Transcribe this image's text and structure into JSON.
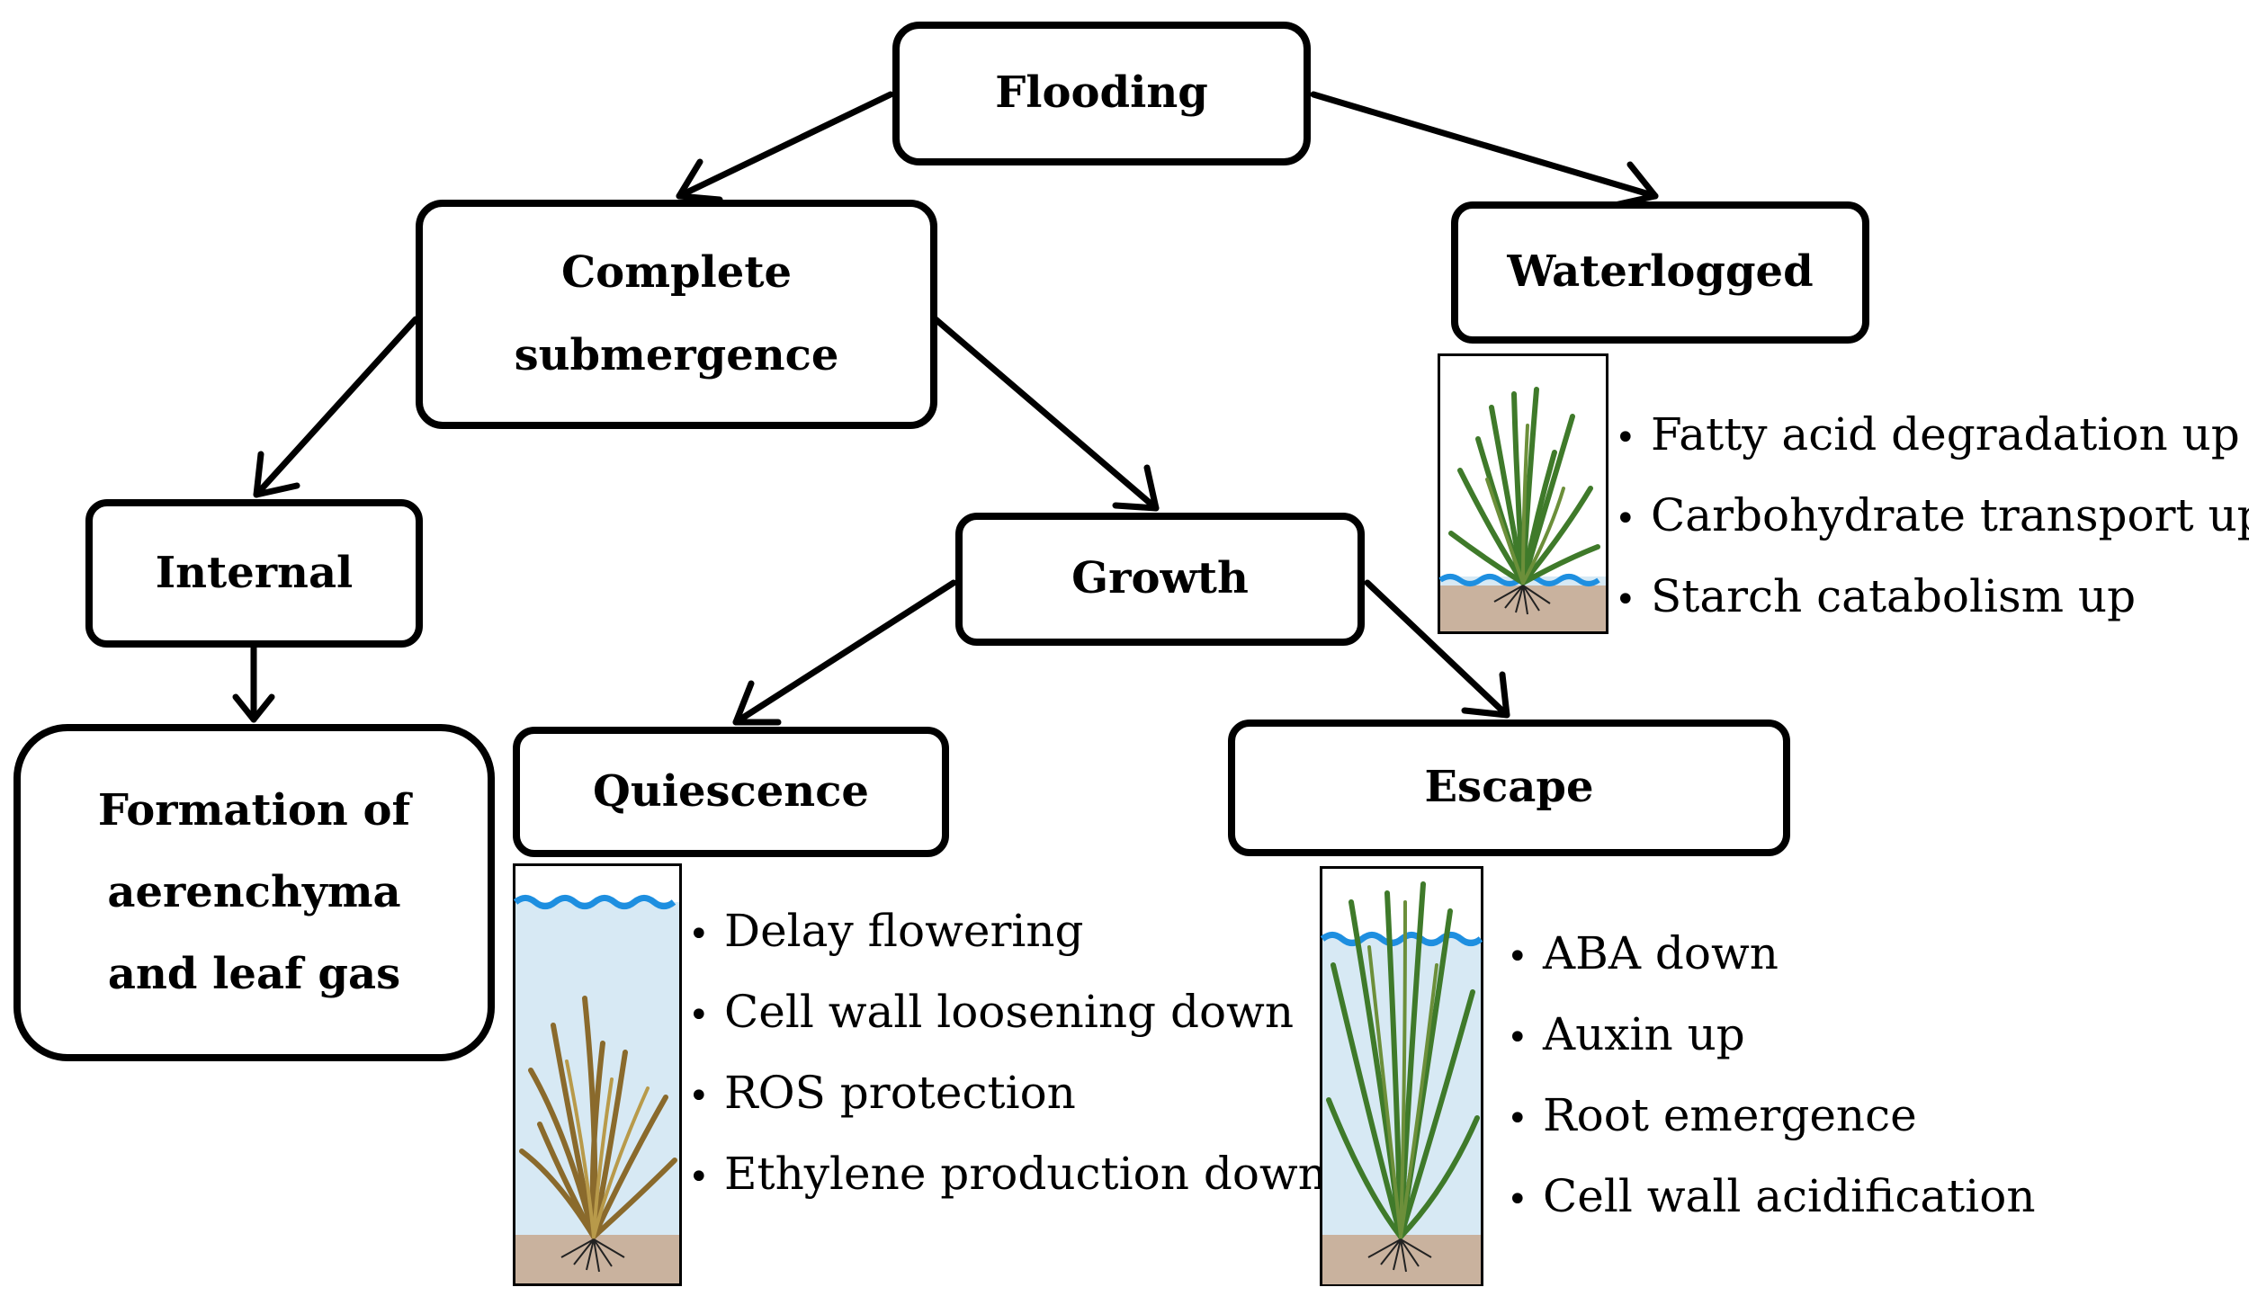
{
  "nodes": {
    "flooding": "Flooding",
    "complete_submergence": "Complete\nsubmergence",
    "waterlogged": "Waterlogged",
    "internal": "Internal",
    "growth": "Growth",
    "formation": "Formation of\naerenchyma\nand leaf gas",
    "quiescence": "Quiescence",
    "escape": "Escape"
  },
  "waterlogged_responses": [
    "Fatty acid degradation up",
    "Carbohydrate transport up",
    "Starch catabolism up"
  ],
  "quiescence_responses": [
    "Delay flowering",
    "Cell wall loosening down",
    "ROS protection",
    "Ethylene production down"
  ],
  "escape_responses": [
    "ABA down",
    "Auxin up",
    "Root emergence",
    "Cell wall acidification"
  ],
  "colors": {
    "water": "#d7e9f4",
    "water_line": "#1e8fe0",
    "soil": "#c9b29e",
    "green_plant": "#3f7a2a",
    "brown_plant": "#8a6a2c"
  }
}
